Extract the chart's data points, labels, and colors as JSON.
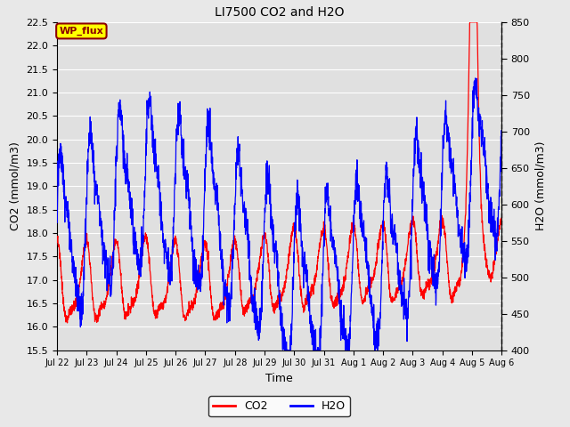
{
  "title": "LI7500 CO2 and H2O",
  "xlabel": "Time",
  "ylabel_left": "CO2 (mmol/m3)",
  "ylabel_right": "H2O (mmol/m3)",
  "co2_ylim": [
    15.5,
    22.5
  ],
  "h2o_ylim": [
    400,
    850
  ],
  "co2_yticks": [
    15.5,
    16.0,
    16.5,
    17.0,
    17.5,
    18.0,
    18.5,
    19.0,
    19.5,
    20.0,
    20.5,
    21.0,
    21.5,
    22.0,
    22.5
  ],
  "h2o_yticks": [
    400,
    450,
    500,
    550,
    600,
    650,
    700,
    750,
    800,
    850
  ],
  "co2_color": "#ff0000",
  "h2o_color": "#0000ff",
  "fig_bg_color": "#e8e8e8",
  "plot_bg_color": "#e0e0e0",
  "annotation_text": "WP_flux",
  "annotation_bg": "#ffff00",
  "annotation_border": "#8b0000",
  "annotation_text_color": "#8b0000",
  "xtick_labels": [
    "Jul 22",
    "Jul 23",
    "Jul 24",
    "Jul 25",
    "Jul 26",
    "Jul 27",
    "Jul 28",
    "Jul 29",
    "Jul 30",
    "Jul 31",
    "Aug 1",
    "Aug 2",
    "Aug 3",
    "Aug 4",
    "Aug 5",
    "Aug 6"
  ],
  "n_days": 15,
  "ppd": 144,
  "seed": 42,
  "figsize": [
    6.4,
    4.8
  ],
  "dpi": 100
}
